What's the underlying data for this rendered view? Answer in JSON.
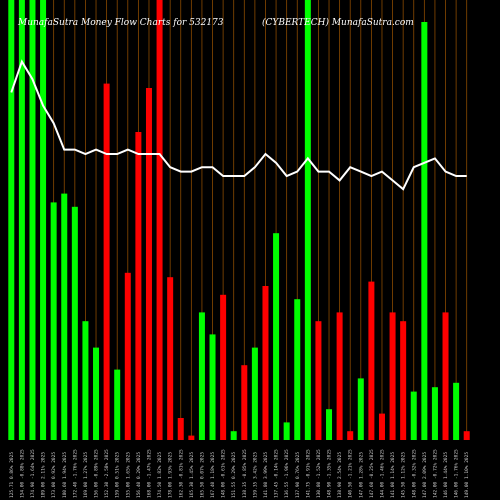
{
  "chart_data": {
    "type": "bar",
    "title_left": "MunafaSutra  Money Flow  Charts for 532173",
    "title_right": "(CYBERTECH) MunafaSutra.com",
    "ylim": [
      0,
      100
    ],
    "colors": {
      "up": "#00ff00",
      "down": "#ff0000",
      "line": "#ffffff",
      "grid": "#8a4a00",
      "background": "#000000"
    },
    "categories": [
      "125.71 0.86% 2025",
      "154.00 -0.88% 2025",
      "174.90 -1.64% 2025",
      "189.00 2.11% 2025",
      "173.00 0.92% 2025",
      "180.60 1.94% 2025",
      "172.40 -1.76% 2025",
      "169.00 1.27% 2025",
      "156.00 -0.89% 2025",
      "152.30 -2.58% 2025",
      "159.00 0.51% 2025",
      "155.00 1.65% 2025",
      "156.40 0.29% 2025",
      "168.00 -1.47% 2025",
      "174.50 1.82% 2025",
      "178.00 1.93% 2025",
      "162.30 -0.81% 2025",
      "165.30 1.45% 2025",
      "165.50 0.07% 2025",
      "167.40 1.18% 2025",
      "148.00 -0.61% 2025",
      "151.55 0.29% 2025",
      "138.35 -0.85% 2025",
      "159.35 3.42% 2025",
      "141.80 3.99% 2025",
      "137.45 -0.14% 2025",
      "136.55 -1.96% 2025",
      "137.90 0.76% 2025",
      "141.75 -0.91% 2025",
      "130.80 -1.52% 2025",
      "148.90 -1.35% 2025",
      "138.90 2.54% 2025",
      "140.50 -1.21% 2025",
      "147.00 1.28% 2025",
      "147.60 -0.25% 2025",
      "144.00 -1.46% 2025",
      "141.00 1.14% 2025",
      "145.50 1.12% 2025",
      "148.00 -0.32% 2025",
      "147.00 2.09% 2025",
      "142.00 -0.72% 2025",
      "146.00 1.44% 2025",
      "146.00 -1.76% 2025",
      "149.00 1.10% 2025"
    ],
    "series": [
      {
        "values": [
          100,
          100,
          100,
          100,
          54,
          56,
          53,
          27,
          21,
          81,
          16,
          38,
          70,
          80,
          100,
          37,
          5,
          1,
          29,
          24,
          33,
          2,
          17,
          21,
          35,
          47,
          4,
          32,
          100,
          27,
          7,
          29,
          2,
          14,
          36,
          6,
          29,
          27,
          11,
          95,
          12,
          29,
          13,
          2
        ]
      }
    ],
    "bar_direction": [
      "up",
      "up",
      "up",
      "up",
      "up",
      "up",
      "up",
      "up",
      "up",
      "down",
      "up",
      "down",
      "down",
      "down",
      "down",
      "down",
      "down",
      "down",
      "up",
      "up",
      "down",
      "up",
      "down",
      "up",
      "down",
      "up",
      "up",
      "up",
      "up",
      "down",
      "up",
      "down",
      "down",
      "up",
      "down",
      "down",
      "down",
      "down",
      "up",
      "up",
      "up",
      "down",
      "up",
      "down"
    ],
    "line_values": [
      79,
      86,
      82,
      76,
      72,
      66,
      66,
      65,
      66,
      65,
      65,
      66,
      65,
      65,
      65,
      62,
      61,
      61,
      62,
      62,
      60,
      60,
      60,
      62,
      65,
      63,
      60,
      61,
      64,
      61,
      61,
      59,
      62,
      61,
      60,
      61,
      59,
      57,
      62,
      63,
      64,
      61,
      60,
      60
    ]
  }
}
